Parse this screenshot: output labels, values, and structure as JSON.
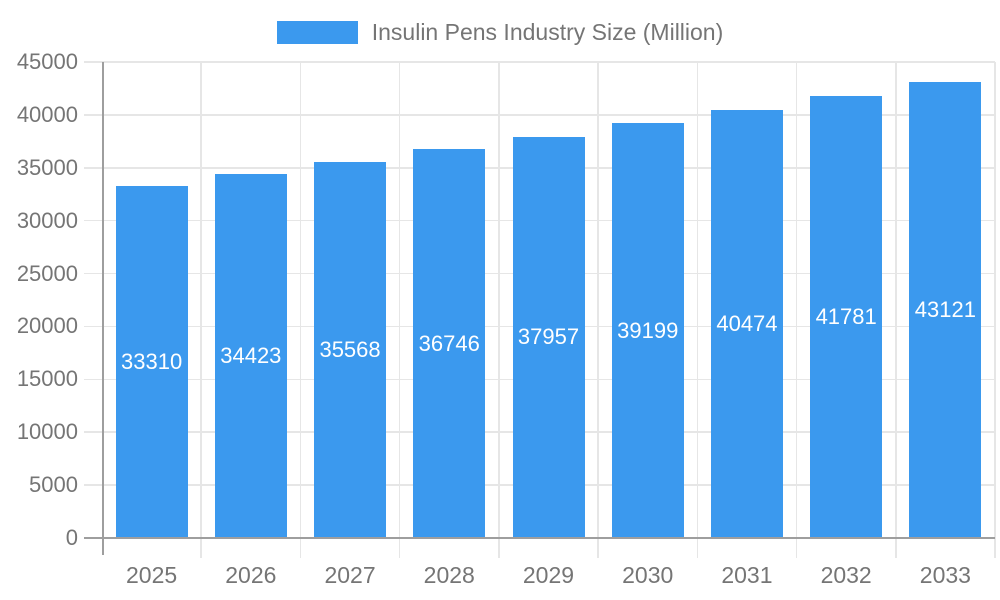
{
  "chart_data": {
    "type": "bar",
    "title": "Insulin Pens Industry Size (Million)",
    "legend": [
      "Insulin Pens Industry Size (Million)"
    ],
    "legend_position": "top",
    "categories": [
      "2025",
      "2026",
      "2027",
      "2028",
      "2029",
      "2030",
      "2031",
      "2032",
      "2033"
    ],
    "series": [
      {
        "name": "Insulin Pens Industry Size (Million)",
        "values": [
          33310,
          34423,
          35568,
          36746,
          37957,
          39199,
          40474,
          41781,
          43121
        ]
      }
    ],
    "data_labels": [
      "33310",
      "34423",
      "35568",
      "36746",
      "37957",
      "39199",
      "40474",
      "41781",
      "43121"
    ],
    "xlabel": "",
    "ylabel": "",
    "ylim": [
      0,
      45000
    ],
    "ytick_step": 5000,
    "ytick_labels": [
      "0",
      "5000",
      "10000",
      "15000",
      "20000",
      "25000",
      "30000",
      "35000",
      "40000",
      "45000"
    ],
    "grid": true,
    "colors": {
      "bar": "#3B99EE",
      "bar_label": "#FFFFFF",
      "axis_line": "#9E9E9E",
      "gridline": "#E6E6E6",
      "tick_text": "#757575",
      "legend_text": "#757575",
      "background": "#FFFFFF"
    }
  }
}
